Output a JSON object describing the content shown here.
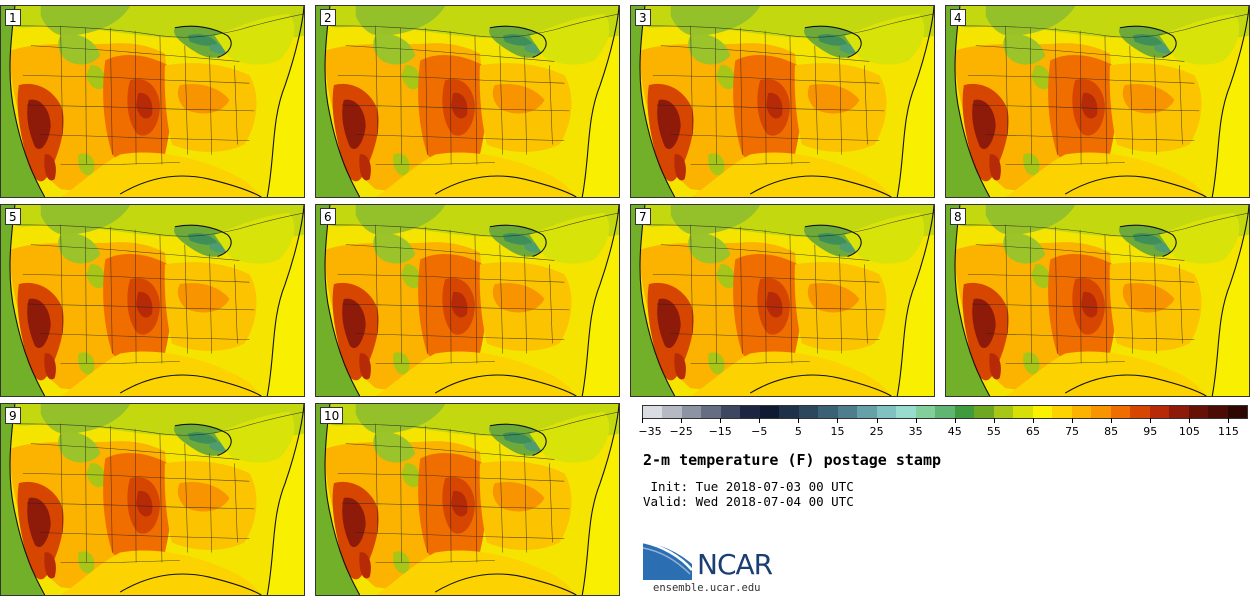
{
  "panels": [
    {
      "label": "1"
    },
    {
      "label": "2"
    },
    {
      "label": "3"
    },
    {
      "label": "4"
    },
    {
      "label": "5"
    },
    {
      "label": "6"
    },
    {
      "label": "7"
    },
    {
      "label": "8"
    },
    {
      "label": "9"
    },
    {
      "label": "10"
    }
  ],
  "colorbar": {
    "min": -35,
    "max": 120,
    "step": 5,
    "tick_labels": [
      "−35",
      "−25",
      "−15",
      "−5",
      "5",
      "15",
      "25",
      "35",
      "45",
      "55",
      "65",
      "75",
      "85",
      "95",
      "105",
      "115"
    ],
    "colors": [
      "#d9dde3",
      "#b4b9c4",
      "#8c93a3",
      "#646d82",
      "#3e4761",
      "#1c2642",
      "#0f1a33",
      "#1d324a",
      "#2b475e",
      "#3b6176",
      "#4e7d8e",
      "#66a0a8",
      "#80c2c2",
      "#98dcd0",
      "#82cf9c",
      "#5fb571",
      "#3f9b3d",
      "#6ea822",
      "#a7c618",
      "#d6df08",
      "#fbf200",
      "#fcd300",
      "#fcb300",
      "#f89400",
      "#f06e00",
      "#d64600",
      "#b62a08",
      "#8e1a0a",
      "#651106",
      "#4a0c04",
      "#2e0602"
    ]
  },
  "title": "2-m temperature (F) postage stamp",
  "init_text": " Init: Tue 2018-07-03 00 UTC",
  "valid_text": "Valid: Wed 2018-07-04 00 UTC",
  "logo": {
    "name": "NCAR"
  },
  "footer_url": "ensemble.ucar.edu"
}
